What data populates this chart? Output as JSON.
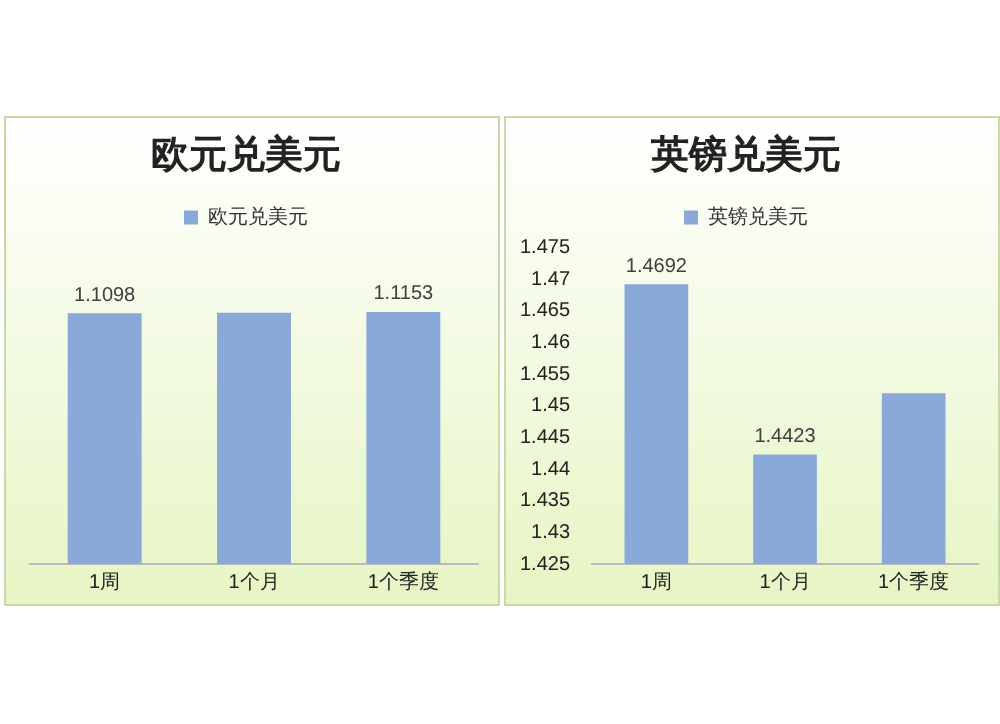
{
  "chart_data": [
    {
      "type": "bar",
      "title": "欧元兑美元",
      "categories": [
        "1周",
        "1个月",
        "1个季度"
      ],
      "series": [
        {
          "name": "欧元兑美元",
          "color": "#8aa8d8",
          "values": [
            1.1098,
            1.112,
            1.1153
          ],
          "value_labels": [
            "1.1098",
            null,
            "1.1153"
          ]
        }
      ],
      "tick_labels": "x",
      "legend": "top",
      "grid": false
    },
    {
      "type": "bar",
      "title": "英镑兑美元",
      "categories": [
        "1周",
        "1个月",
        "1个季度"
      ],
      "series": [
        {
          "name": "英镑兑美元",
          "color": "#8aa8d8",
          "values": [
            1.4692,
            1.4423,
            1.452
          ],
          "value_labels": [
            "1.4692",
            "1.4423",
            null
          ]
        }
      ],
      "ylim": [
        1.425,
        1.475
      ],
      "yticks": [
        1.425,
        1.43,
        1.435,
        1.44,
        1.445,
        1.45,
        1.455,
        1.46,
        1.465,
        1.47,
        1.475
      ],
      "legend": "top",
      "grid": false
    }
  ]
}
